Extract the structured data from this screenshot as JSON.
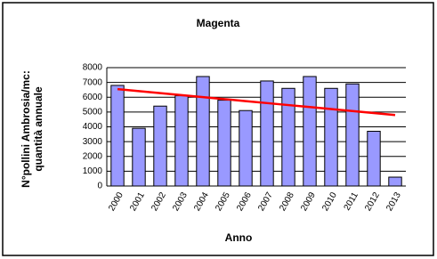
{
  "chart_data": {
    "type": "bar",
    "title": "Magenta",
    "x_label": "Anno",
    "y_label": [
      "N°pollini Ambrosia/mc:",
      "quantità annuale"
    ],
    "categories": [
      "2000",
      "2001",
      "2002",
      "2003",
      "2004",
      "2005",
      "2006",
      "2007",
      "2008",
      "2009",
      "2010",
      "2011",
      "2012",
      "2013"
    ],
    "values": [
      6800,
      3900,
      5400,
      6100,
      7400,
      5800,
      5100,
      7100,
      6600,
      7400,
      6600,
      6900,
      3700,
      600
    ],
    "color": "#9999ff",
    "trend_values": [
      6550,
      6415,
      6280,
      6145,
      6010,
      5875,
      5740,
      5605,
      5470,
      5335,
      5200,
      5065,
      4930,
      4800
    ],
    "trend_color": "#ff0000",
    "ylim": [
      0,
      8000
    ],
    "yticks": [
      0,
      1000,
      2000,
      3000,
      4000,
      5000,
      6000,
      7000,
      8000
    ],
    "grid": true
  }
}
